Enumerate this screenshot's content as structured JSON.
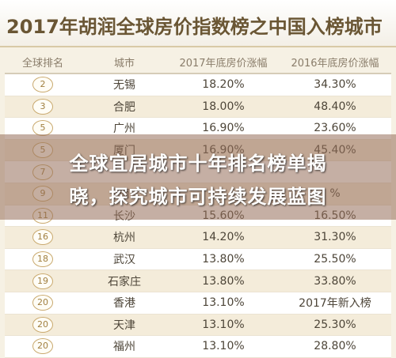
{
  "header": {
    "title": "2017年胡润全球房价指数榜之中国入榜城市"
  },
  "table": {
    "columns": [
      "全球排名",
      "城市",
      "2017年底房价涨幅",
      "2016年底房价涨幅"
    ],
    "rows": [
      {
        "rank": "2",
        "city": "无锡",
        "y2017": "18.20%",
        "y2016": "34.30%"
      },
      {
        "rank": "3",
        "city": "合肥",
        "y2017": "18.00%",
        "y2016": "48.40%"
      },
      {
        "rank": "5",
        "city": "广州",
        "y2017": "16.90%",
        "y2016": "23.60%"
      },
      {
        "rank": "5",
        "city": "厦门",
        "y2017": "16.90%",
        "y2016": "45.40%"
      },
      {
        "rank": "7",
        "city": "",
        "y2017": "",
        "y2016": ""
      },
      {
        "rank": "9",
        "city": "南",
        "y2017": "",
        "y2016": "%"
      },
      {
        "rank": "11",
        "city": "长沙",
        "y2017": "15.60%",
        "y2016": "16.50%"
      },
      {
        "rank": "16",
        "city": "杭州",
        "y2017": "14.20%",
        "y2016": "31.30%"
      },
      {
        "rank": "18",
        "city": "武汉",
        "y2017": "13.80%",
        "y2016": "25.50%"
      },
      {
        "rank": "19",
        "city": "石家庄",
        "y2017": "13.80%",
        "y2016": "33.80%"
      },
      {
        "rank": "20",
        "city": "香港",
        "y2017": "13.10%",
        "y2016": "2017年新入榜"
      },
      {
        "rank": "20",
        "city": "天津",
        "y2017": "13.10%",
        "y2016": "25.30%"
      },
      {
        "rank": "20",
        "city": "福州",
        "y2017": "13.10%",
        "y2016": "28.80%"
      }
    ]
  },
  "overlay": {
    "line1": "全球宜居城市十年排名榜单揭",
    "line2": "晓，探究城市可持续发展蓝图"
  }
}
